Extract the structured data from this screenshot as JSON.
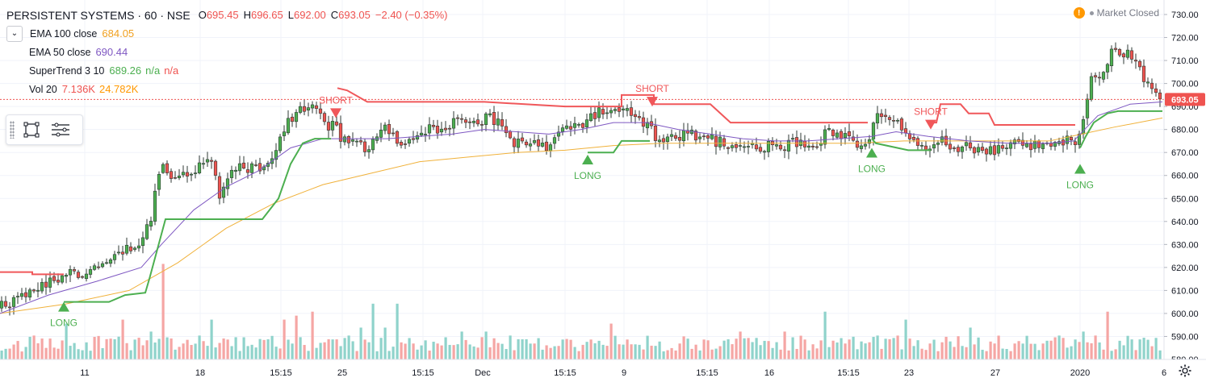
{
  "symbol": {
    "name": "PERSISTENT SYSTEMS · 60 · NSE",
    "open_label": "O",
    "open": "695.45",
    "high_label": "H",
    "high": "696.65",
    "low_label": "L",
    "low": "692.00",
    "close_label": "C",
    "close": "693.05",
    "change": "−2.40 (−0.35%)"
  },
  "indicators": [
    {
      "name": "EMA 100 close",
      "values": [
        "684.05"
      ],
      "color": "#f0b13a"
    },
    {
      "name": "EMA 50 close",
      "values": [
        "690.44"
      ],
      "color": "#7e57c2"
    },
    {
      "name": "SuperTrend 3 10",
      "values": [
        "689.26",
        "n/a",
        "n/a"
      ],
      "colors": [
        "#4caf50",
        "#4caf50",
        "#ef5350"
      ]
    },
    {
      "name": "Vol 20",
      "values": [
        "7.136K",
        "24.782K"
      ],
      "colors": [
        "#ef5350",
        "#ff9800"
      ]
    }
  ],
  "status": {
    "icon": "warning-icon",
    "text": "Market Closed"
  },
  "colors": {
    "up": "#26a69a",
    "up_body": "#4caf50",
    "down": "#ef5350",
    "st_up": "#4caf50",
    "st_down": "#f0575a",
    "ema50": "#7e57c2",
    "ema100": "#f0b13a",
    "vol_up": "#8fd3cb",
    "vol_down": "#f5a6a4",
    "price_tag": "#ef5350"
  },
  "chart_data": {
    "type": "candlestick",
    "y_axis": {
      "min": 580,
      "max": 730,
      "ticks": [
        730,
        720,
        710,
        700,
        690,
        680,
        670,
        660,
        650,
        640,
        630,
        620,
        610,
        600,
        590,
        580
      ]
    },
    "x_ticks": [
      "11",
      "18",
      "15:15",
      "25",
      "15:15",
      "Dec",
      "15:15",
      "9",
      "15:15",
      "16",
      "15:15",
      "23",
      "27",
      "2020",
      "6"
    ],
    "last_price": "693.05",
    "price_series": [
      [
        0,
        603
      ],
      [
        10,
        604
      ],
      [
        22,
        605
      ],
      [
        35,
        609
      ],
      [
        48,
        612
      ],
      [
        58,
        613
      ],
      [
        70,
        614
      ],
      [
        80,
        619
      ],
      [
        95,
        616
      ],
      [
        110,
        620
      ],
      [
        125,
        623
      ],
      [
        140,
        626
      ],
      [
        155,
        628
      ],
      [
        170,
        630
      ],
      [
        185,
        638
      ],
      [
        195,
        660
      ],
      [
        205,
        665
      ],
      [
        215,
        658
      ],
      [
        225,
        664
      ],
      [
        240,
        658
      ],
      [
        250,
        668
      ],
      [
        262,
        666
      ],
      [
        272,
        650
      ],
      [
        285,
        660
      ],
      [
        298,
        663
      ],
      [
        310,
        664
      ],
      [
        322,
        664
      ],
      [
        335,
        666
      ],
      [
        345,
        672
      ],
      [
        355,
        684
      ],
      [
        365,
        686
      ],
      [
        375,
        690
      ],
      [
        385,
        690
      ],
      [
        395,
        688
      ],
      [
        405,
        680
      ],
      [
        415,
        682
      ],
      [
        425,
        675
      ],
      [
        435,
        675
      ],
      [
        445,
        675
      ],
      [
        455,
        670
      ],
      [
        465,
        676
      ],
      [
        475,
        683
      ],
      [
        485,
        677
      ],
      [
        495,
        674
      ],
      [
        505,
        675
      ],
      [
        515,
        677
      ],
      [
        525,
        680
      ],
      [
        535,
        680
      ],
      [
        545,
        679
      ],
      [
        555,
        681
      ],
      [
        565,
        683
      ],
      [
        575,
        683
      ],
      [
        585,
        682
      ],
      [
        595,
        683
      ],
      [
        605,
        686
      ],
      [
        615,
        683
      ],
      [
        625,
        680
      ],
      [
        635,
        675
      ],
      [
        645,
        674
      ],
      [
        655,
        675
      ],
      [
        665,
        675
      ],
      [
        675,
        673
      ],
      [
        685,
        674
      ],
      [
        695,
        680
      ],
      [
        705,
        683
      ],
      [
        715,
        680
      ],
      [
        725,
        683
      ],
      [
        735,
        687
      ],
      [
        745,
        687
      ],
      [
        755,
        687
      ],
      [
        765,
        689
      ],
      [
        775,
        688
      ],
      [
        785,
        684
      ],
      [
        795,
        683
      ],
      [
        805,
        681
      ],
      [
        815,
        674
      ],
      [
        825,
        674
      ],
      [
        835,
        676
      ],
      [
        845,
        677
      ],
      [
        855,
        678
      ],
      [
        865,
        677
      ],
      [
        875,
        677
      ],
      [
        885,
        675
      ],
      [
        895,
        674
      ],
      [
        905,
        672
      ],
      [
        915,
        673
      ],
      [
        925,
        672
      ],
      [
        935,
        672
      ],
      [
        945,
        672
      ],
      [
        955,
        673
      ],
      [
        965,
        672
      ],
      [
        975,
        673
      ],
      [
        985,
        674
      ],
      [
        995,
        673
      ],
      [
        1005,
        673
      ],
      [
        1015,
        674
      ],
      [
        1025,
        681
      ],
      [
        1035,
        679
      ],
      [
        1045,
        677
      ],
      [
        1055,
        675
      ],
      [
        1065,
        674
      ],
      [
        1075,
        674
      ],
      [
        1085,
        686
      ],
      [
        1095,
        684
      ],
      [
        1105,
        683
      ],
      [
        1115,
        682
      ],
      [
        1125,
        677
      ],
      [
        1135,
        675
      ],
      [
        1145,
        672
      ],
      [
        1155,
        671
      ],
      [
        1165,
        675
      ],
      [
        1175,
        674
      ],
      [
        1185,
        671
      ],
      [
        1195,
        673
      ],
      [
        1205,
        671
      ],
      [
        1215,
        672
      ],
      [
        1225,
        670
      ],
      [
        1235,
        672
      ],
      [
        1245,
        673
      ],
      [
        1255,
        673
      ],
      [
        1265,
        675
      ],
      [
        1275,
        674
      ],
      [
        1285,
        672
      ],
      [
        1295,
        674
      ],
      [
        1305,
        675
      ],
      [
        1315,
        675
      ],
      [
        1325,
        675
      ],
      [
        1335,
        672
      ],
      [
        1345,
        690
      ],
      [
        1355,
        706
      ],
      [
        1365,
        700
      ],
      [
        1375,
        713
      ],
      [
        1385,
        714
      ],
      [
        1395,
        713
      ],
      [
        1405,
        712
      ],
      [
        1415,
        702
      ],
      [
        1425,
        699
      ],
      [
        1435,
        694
      ],
      [
        1440,
        693
      ]
    ],
    "ema50": [
      [
        0,
        600
      ],
      [
        60,
        608
      ],
      [
        120,
        614
      ],
      [
        175,
        620
      ],
      [
        200,
        630
      ],
      [
        240,
        645
      ],
      [
        280,
        655
      ],
      [
        320,
        662
      ],
      [
        360,
        672
      ],
      [
        400,
        676
      ],
      [
        440,
        676
      ],
      [
        480,
        676
      ],
      [
        520,
        677
      ],
      [
        560,
        678
      ],
      [
        600,
        680
      ],
      [
        640,
        679
      ],
      [
        680,
        678
      ],
      [
        720,
        680
      ],
      [
        760,
        683
      ],
      [
        800,
        683
      ],
      [
        840,
        680
      ],
      [
        880,
        678
      ],
      [
        920,
        676
      ],
      [
        960,
        675
      ],
      [
        1000,
        675
      ],
      [
        1040,
        676
      ],
      [
        1080,
        677
      ],
      [
        1110,
        679
      ],
      [
        1150,
        677
      ],
      [
        1200,
        675
      ],
      [
        1250,
        674
      ],
      [
        1300,
        674
      ],
      [
        1330,
        675
      ],
      [
        1360,
        686
      ],
      [
        1400,
        691
      ],
      [
        1440,
        692
      ]
    ],
    "ema100": [
      [
        0,
        600
      ],
      [
        80,
        604
      ],
      [
        160,
        610
      ],
      [
        220,
        622
      ],
      [
        280,
        637
      ],
      [
        340,
        648
      ],
      [
        400,
        656
      ],
      [
        460,
        661
      ],
      [
        520,
        666
      ],
      [
        580,
        668
      ],
      [
        640,
        670
      ],
      [
        700,
        671
      ],
      [
        760,
        673
      ],
      [
        820,
        674
      ],
      [
        880,
        674
      ],
      [
        940,
        674
      ],
      [
        1000,
        674
      ],
      [
        1060,
        674
      ],
      [
        1120,
        675
      ],
      [
        1180,
        675
      ],
      [
        1240,
        675
      ],
      [
        1300,
        675
      ],
      [
        1340,
        678
      ],
      [
        1380,
        681
      ],
      [
        1440,
        685
      ]
    ],
    "supertrend": [
      {
        "dir": "down",
        "points": [
          [
            0,
            618
          ],
          [
            40,
            618
          ],
          [
            40,
            617
          ],
          [
            79,
            617
          ]
        ]
      },
      {
        "dir": "up",
        "points": [
          [
            79,
            605
          ],
          [
            135,
            605
          ],
          [
            155,
            608
          ],
          [
            180,
            609
          ],
          [
            185,
            615
          ],
          [
            205,
            641
          ],
          [
            325,
            641
          ],
          [
            345,
            650
          ],
          [
            360,
            665
          ],
          [
            375,
            674
          ],
          [
            390,
            676
          ],
          [
            410,
            676
          ]
        ]
      },
      {
        "dir": "down",
        "points": [
          [
            418,
            698
          ],
          [
            430,
            697
          ],
          [
            455,
            692
          ],
          [
            600,
            692
          ],
          [
            700,
            690
          ],
          [
            770,
            690
          ],
          [
            770,
            695
          ],
          [
            810,
            695
          ],
          [
            810,
            691
          ],
          [
            880,
            691
          ],
          [
            905,
            683
          ],
          [
            1075,
            683
          ]
        ]
      },
      {
        "dir": "up",
        "points": [
          [
            728,
            670
          ],
          [
            760,
            670
          ],
          [
            770,
            675
          ],
          [
            805,
            675
          ]
        ]
      },
      {
        "dir": "up",
        "points": [
          [
            1080,
            676
          ],
          [
            1085,
            674
          ],
          [
            1125,
            671
          ],
          [
            1153,
            671
          ]
        ]
      },
      {
        "dir": "down",
        "points": [
          [
            1153,
            683
          ],
          [
            1160,
            683
          ],
          [
            1165,
            691
          ],
          [
            1190,
            691
          ],
          [
            1200,
            687
          ],
          [
            1225,
            687
          ],
          [
            1232,
            682
          ],
          [
            1332,
            682
          ]
        ]
      },
      {
        "dir": "up",
        "points": [
          [
            1338,
            672
          ],
          [
            1345,
            677
          ],
          [
            1355,
            683
          ],
          [
            1372,
            687
          ],
          [
            1385,
            688
          ],
          [
            1440,
            688
          ]
        ]
      }
    ],
    "signals": [
      {
        "type": "LONG",
        "x": 79,
        "price": 605
      },
      {
        "type": "SHORT",
        "x": 416,
        "price": 685
      },
      {
        "type": "LONG",
        "x": 728,
        "price": 669
      },
      {
        "type": "SHORT",
        "x": 808,
        "price": 690
      },
      {
        "type": "LONG",
        "x": 1080,
        "price": 672
      },
      {
        "type": "SHORT",
        "x": 1153,
        "price": 680
      },
      {
        "type": "LONG",
        "x": 1338,
        "price": 665
      }
    ],
    "volume_peaks": [
      [
        20,
        3
      ],
      [
        42,
        6
      ],
      [
        60,
        3
      ],
      [
        84,
        9
      ],
      [
        105,
        3
      ],
      [
        153,
        10
      ],
      [
        170,
        4
      ],
      [
        188,
        7
      ],
      [
        201,
        24
      ],
      [
        225,
        4
      ],
      [
        245,
        6
      ],
      [
        262,
        10
      ],
      [
        283,
        5
      ],
      [
        300,
        4
      ],
      [
        318,
        3
      ],
      [
        352,
        10
      ],
      [
        368,
        11
      ],
      [
        385,
        12
      ],
      [
        410,
        4
      ],
      [
        430,
        6
      ],
      [
        447,
        8
      ],
      [
        462,
        14
      ],
      [
        478,
        8
      ],
      [
        494,
        14
      ],
      [
        510,
        4
      ],
      [
        540,
        4
      ],
      [
        570,
        7
      ],
      [
        600,
        7
      ],
      [
        630,
        6
      ],
      [
        660,
        4
      ],
      [
        695,
        5
      ],
      [
        730,
        5
      ],
      [
        758,
        9
      ],
      [
        775,
        5
      ],
      [
        800,
        4
      ],
      [
        840,
        4
      ],
      [
        870,
        5
      ],
      [
        900,
        3
      ],
      [
        917,
        7
      ],
      [
        945,
        4
      ],
      [
        970,
        7
      ],
      [
        995,
        5
      ],
      [
        1021,
        12
      ],
      [
        1045,
        4
      ],
      [
        1085,
        6
      ],
      [
        1105,
        5
      ],
      [
        1123,
        10
      ],
      [
        1150,
        4
      ],
      [
        1175,
        4
      ],
      [
        1203,
        8
      ],
      [
        1230,
        4
      ],
      [
        1255,
        4
      ],
      [
        1280,
        3
      ],
      [
        1313,
        6
      ],
      [
        1342,
        7
      ],
      [
        1355,
        6
      ],
      [
        1373,
        12
      ],
      [
        1395,
        3
      ],
      [
        1420,
        3
      ]
    ]
  }
}
